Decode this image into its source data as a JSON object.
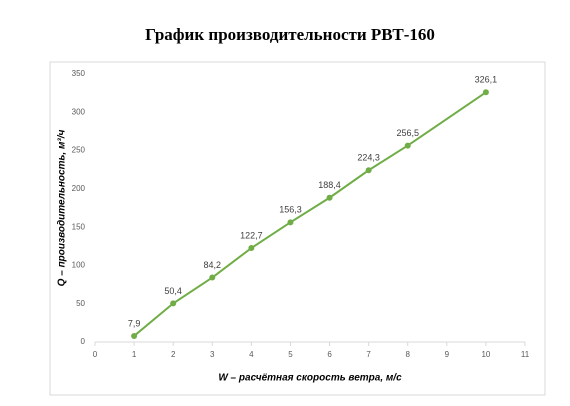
{
  "chart_data": {
    "type": "line",
    "title": "График производительности РВТ-160",
    "xlabel": "W – расчётная скорость ветра, м/с",
    "ylabel": "Q – производительность, м³/ч",
    "x": [
      1,
      2,
      3,
      4,
      5,
      6,
      7,
      8,
      10
    ],
    "values": [
      7.9,
      50.4,
      84.2,
      122.7,
      156.3,
      188.4,
      224.3,
      256.5,
      326.1
    ],
    "value_labels": [
      "7,9",
      "50,4",
      "84,2",
      "122,7",
      "156,3",
      "188,4",
      "224,3",
      "256,5",
      "326,1"
    ],
    "color": "#70ad47",
    "xlim": [
      0,
      11
    ],
    "xticks": [
      0,
      1,
      2,
      3,
      4,
      5,
      6,
      7,
      8,
      9,
      10,
      11
    ],
    "ylim": [
      0,
      350
    ],
    "yticks": [
      0,
      50,
      100,
      150,
      200,
      250,
      300,
      350
    ],
    "grid": false
  }
}
